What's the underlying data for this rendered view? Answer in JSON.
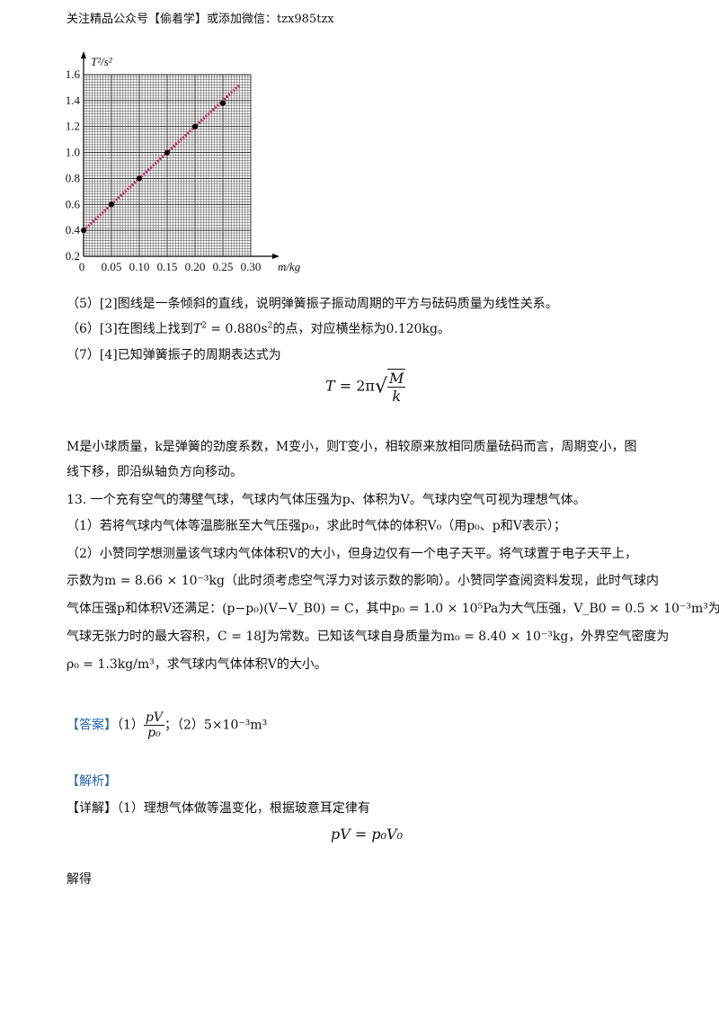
{
  "header": {
    "text": "关注精品公众号【偷着学】或添加微信：tzx985tzx"
  },
  "chart_data": {
    "type": "scatter",
    "xlabel": "m/kg",
    "ylabel": "T²/s²",
    "x_ticks": [
      "0",
      "0.05",
      "0.10",
      "0.15",
      "0.20",
      "0.25",
      "0.30"
    ],
    "y_ticks": [
      "0.2",
      "0.4",
      "0.6",
      "0.8",
      "1.0",
      "1.2",
      "1.4",
      "1.6"
    ],
    "xlim": [
      0,
      0.3
    ],
    "ylim": [
      0.2,
      1.6
    ],
    "grid": true,
    "points": [
      {
        "x": 0.0,
        "y": 0.4
      },
      {
        "x": 0.05,
        "y": 0.6
      },
      {
        "x": 0.1,
        "y": 0.8
      },
      {
        "x": 0.15,
        "y": 1.0
      },
      {
        "x": 0.2,
        "y": 1.2
      },
      {
        "x": 0.25,
        "y": 1.38
      }
    ],
    "fit_line": {
      "x": [
        0,
        0.28
      ],
      "y": [
        0.4,
        1.52
      ],
      "color": "#c0306a"
    }
  },
  "sol5": {
    "prefix": "（5）[2]图线是一条倾斜的直线，说明弹簧振子振动周期的平方与砝码质量为线性关系。"
  },
  "sol6": {
    "p1": "（6）[3]在图线上找到",
    "var": "T",
    "sup": "2",
    "p2": " = 0.880s",
    "sup2": "2",
    "p3": "的点，对应横坐标为0.120kg。"
  },
  "sol7": {
    "text": "（7）[4]已知弹簧振子的周期表达式为"
  },
  "formula1": {
    "lhs": "T",
    "eq": " = 2π",
    "num": "M",
    "den": "k"
  },
  "para1": {
    "line1": "M是小球质量，k是弹簧的劲度系数，M变小，则T变小，相较原来放相同质量砝码而言，周期变小，图",
    "line2": "线下移，即沿纵轴负方向移动。"
  },
  "q13": {
    "l1": "13. 一个充有空气的薄壁气球，气球内气体压强为p、体积为V。气球内空气可视为理想气体。",
    "l2": "（1）若将气球内气体等温膨胀至大气压强p₀，求此时气体的体积V₀（用p₀、p和V表示）；",
    "l3": "（2）小赞同学想测量该气球内气体体积V的大小，但身边仅有一个电子天平。将气球置于电子天平上，",
    "l4": "示数为m = 8.66 × 10⁻³kg（此时须考虑空气浮力对该示数的影响）。小赞同学查阅资料发现，此时气球内",
    "l5": "气体压强p和体积V还满足：(p−p₀)(V−V_B0) = C，其中p₀ = 1.0 × 10⁵Pa为大气压强，V_B0 = 0.5 × 10⁻³m³为",
    "l6": "气球无张力时的最大容积，C = 18J为常数。已知该气球自身质量为m₀ = 8.40 × 10⁻³kg，外界空气密度为",
    "l7": "ρ₀ = 1.3kg/m³，求气球内气体体积V的大小。"
  },
  "answer": {
    "label": "【答案】",
    "p1": "（1）",
    "num": "pV",
    "den": "p₀",
    "sep": "；（2）",
    "val": "5×10⁻³m³"
  },
  "analysis": {
    "label": "【解析】"
  },
  "detail": {
    "label": "【详解】",
    "text": "（1）理想气体做等温变化，根据玻意耳定律有"
  },
  "formula2": {
    "text": "pV = p₀V₀"
  },
  "jiede": {
    "text": "解得"
  }
}
